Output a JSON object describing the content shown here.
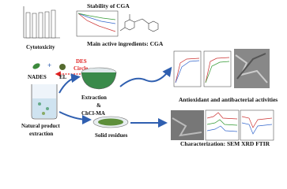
{
  "labels": {
    "stability": "Stability of CGA",
    "main_ingredient": "Main active ingredients: CGA",
    "cytotoxicity": "Cytotoxicity",
    "des": "DES",
    "circle": "Circle",
    "nades": "NADES",
    "el": "EL",
    "extraction": "Extraction",
    "amp": "&",
    "chcl": "ChCl-MA",
    "natural": "Natural product",
    "natural2": "extraction",
    "residues": "Solid residues",
    "antioxidant": "Antioxidant and antibacterial activities",
    "characterization": "Characterization: SEM XRD FTIR"
  }
}
